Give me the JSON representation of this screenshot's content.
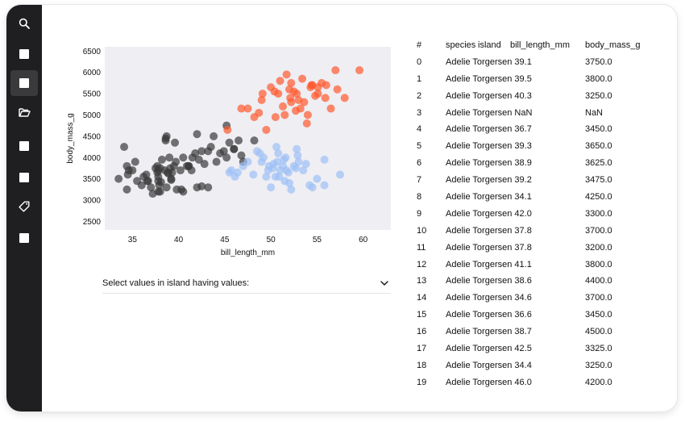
{
  "sidebar": {
    "items": [
      {
        "icon": "search-icon"
      },
      {
        "icon": "square-icon"
      },
      {
        "icon": "square-icon",
        "active": true
      },
      {
        "icon": "folder-open-icon"
      },
      {
        "icon": "square-icon"
      },
      {
        "icon": "square-icon"
      },
      {
        "icon": "tag-icon"
      },
      {
        "icon": "square-icon"
      }
    ]
  },
  "colors": {
    "Torgersen": "#3a3a3a",
    "Biscoe": "#ff5a2e",
    "Dream": "#9ec0f5",
    "plot_bg": "#eeeef3",
    "sidebar_bg": "#1f1f21"
  },
  "chart_data": {
    "type": "scatter",
    "xlabel": "bill_length_mm",
    "ylabel": "body_mass_g",
    "xlim": [
      32,
      63
    ],
    "ylim": [
      2300,
      6600
    ],
    "xticks": [
      35,
      40,
      45,
      50,
      55,
      60
    ],
    "yticks": [
      2500,
      3000,
      3500,
      4000,
      4500,
      5000,
      5500,
      6000,
      6500
    ],
    "grid": false,
    "legend": "none",
    "series": [
      {
        "color_key": "Torgersen",
        "points": [
          [
            33.5,
            3500
          ],
          [
            34.4,
            3800
          ],
          [
            34.5,
            3600
          ],
          [
            35.0,
            3700
          ],
          [
            35.3,
            3900
          ],
          [
            35.5,
            3450
          ],
          [
            36.0,
            3350
          ],
          [
            36.5,
            3600
          ],
          [
            37.0,
            3300
          ],
          [
            37.2,
            3150
          ],
          [
            37.5,
            3750
          ],
          [
            37.7,
            3800
          ],
          [
            37.7,
            3650
          ],
          [
            37.8,
            3550
          ],
          [
            37.8,
            3450
          ],
          [
            37.9,
            3350
          ],
          [
            38.0,
            3200
          ],
          [
            38.0,
            3750
          ],
          [
            38.2,
            3950
          ],
          [
            38.5,
            3700
          ],
          [
            38.6,
            4450
          ],
          [
            38.7,
            3300
          ],
          [
            38.8,
            3650
          ],
          [
            39.0,
            4000
          ],
          [
            39.2,
            3500
          ],
          [
            39.5,
            3800
          ],
          [
            39.6,
            4350
          ],
          [
            39.8,
            3250
          ],
          [
            40.2,
            3700
          ],
          [
            40.3,
            3250
          ],
          [
            40.5,
            4000
          ],
          [
            40.9,
            3800
          ],
          [
            41.1,
            3800
          ],
          [
            41.5,
            4000
          ],
          [
            41.8,
            4100
          ],
          [
            42.0,
            4550
          ],
          [
            42.2,
            3950
          ],
          [
            42.5,
            4150
          ],
          [
            42.8,
            3850
          ],
          [
            43.2,
            3300
          ],
          [
            43.5,
            4250
          ],
          [
            43.8,
            4500
          ],
          [
            44.1,
            3900
          ],
          [
            44.5,
            4100
          ],
          [
            44.9,
            4150
          ],
          [
            45.2,
            4000
          ],
          [
            45.5,
            4350
          ],
          [
            46.0,
            4200
          ],
          [
            46.5,
            4400
          ],
          [
            46.8,
            4050
          ],
          [
            47.0,
            3900
          ],
          [
            48.2,
            4400
          ],
          [
            39.1,
            3750
          ],
          [
            39.3,
            3650
          ],
          [
            38.9,
            3625
          ],
          [
            39.2,
            3475
          ],
          [
            34.1,
            4250
          ],
          [
            42.0,
            3300
          ],
          [
            37.8,
            3700
          ],
          [
            37.8,
            3200
          ],
          [
            41.1,
            3800
          ],
          [
            38.6,
            4400
          ],
          [
            34.6,
            3700
          ],
          [
            36.6,
            3450
          ],
          [
            38.7,
            4500
          ],
          [
            42.5,
            3325
          ],
          [
            34.4,
            3250
          ],
          [
            46.0,
            4200
          ],
          [
            36.7,
            3450
          ],
          [
            40.5,
            3200
          ],
          [
            43.2,
            4150
          ],
          [
            41.4,
            3700
          ],
          [
            39.7,
            3900
          ],
          [
            38.1,
            3425
          ],
          [
            36.2,
            3550
          ],
          [
            45.2,
            4750
          ]
        ]
      },
      {
        "color_key": "Dream",
        "points": [
          [
            46.1,
            3550
          ],
          [
            47.5,
            3900
          ],
          [
            48.5,
            4150
          ],
          [
            49.0,
            3900
          ],
          [
            49.5,
            3550
          ],
          [
            49.8,
            3800
          ],
          [
            50.0,
            3300
          ],
          [
            50.2,
            3750
          ],
          [
            50.3,
            3850
          ],
          [
            50.5,
            3550
          ],
          [
            50.7,
            3900
          ],
          [
            50.8,
            4100
          ],
          [
            51.0,
            3700
          ],
          [
            51.3,
            3800
          ],
          [
            51.4,
            3950
          ],
          [
            51.5,
            3450
          ],
          [
            51.7,
            3700
          ],
          [
            51.9,
            3650
          ],
          [
            52.0,
            3400
          ],
          [
            52.2,
            3250
          ],
          [
            52.5,
            3800
          ],
          [
            52.7,
            3750
          ],
          [
            52.8,
            4200
          ],
          [
            53.0,
            3900
          ],
          [
            53.5,
            3700
          ],
          [
            54.2,
            3350
          ],
          [
            55.0,
            3500
          ],
          [
            55.8,
            3950
          ],
          [
            45.5,
            3650
          ],
          [
            47.0,
            3800
          ],
          [
            48.1,
            3600
          ],
          [
            49.2,
            4000
          ],
          [
            50.9,
            3550
          ],
          [
            46.4,
            3650
          ],
          [
            45.7,
            3700
          ],
          [
            50.6,
            4250
          ],
          [
            52.9,
            4050
          ],
          [
            49.7,
            3700
          ],
          [
            51.6,
            4000
          ],
          [
            55.8,
            3350
          ],
          [
            57.5,
            3600
          ],
          [
            54.5,
            3300
          ],
          [
            53.8,
            3850
          ],
          [
            48.8,
            4100
          ]
        ]
      },
      {
        "color_key": "Biscoe",
        "points": [
          [
            45.3,
            4650
          ],
          [
            47.5,
            5150
          ],
          [
            48.2,
            4950
          ],
          [
            48.7,
            5050
          ],
          [
            49.0,
            5350
          ],
          [
            49.5,
            4650
          ],
          [
            50.0,
            5650
          ],
          [
            50.5,
            4950
          ],
          [
            50.8,
            5500
          ],
          [
            51.0,
            5800
          ],
          [
            51.3,
            5200
          ],
          [
            51.5,
            5000
          ],
          [
            51.7,
            5950
          ],
          [
            52.0,
            5600
          ],
          [
            52.2,
            5300
          ],
          [
            52.5,
            5550
          ],
          [
            52.8,
            5500
          ],
          [
            53.0,
            5350
          ],
          [
            53.2,
            5150
          ],
          [
            53.4,
            5850
          ],
          [
            53.6,
            5300
          ],
          [
            54.0,
            5000
          ],
          [
            54.3,
            5650
          ],
          [
            54.5,
            5700
          ],
          [
            54.8,
            5450
          ],
          [
            55.1,
            5650
          ],
          [
            55.5,
            5750
          ],
          [
            55.9,
            5400
          ],
          [
            56.0,
            5700
          ],
          [
            56.5,
            5150
          ],
          [
            57.0,
            6050
          ],
          [
            57.2,
            5600
          ],
          [
            58.0,
            5400
          ],
          [
            59.6,
            6050
          ],
          [
            52.1,
            5400
          ],
          [
            53.9,
            4800
          ],
          [
            55.1,
            5500
          ],
          [
            52.2,
            5750
          ],
          [
            50.4,
            5550
          ],
          [
            54.4,
            5700
          ],
          [
            52.7,
            5100
          ],
          [
            49.1,
            5500
          ],
          [
            46.8,
            5150
          ]
        ]
      }
    ]
  },
  "select": {
    "label": "Select values in island having values:"
  },
  "table": {
    "headers": {
      "idx": "#",
      "species": "species",
      "island": "island",
      "bill": "bill_length_mm",
      "mass": "body_mass_g"
    },
    "rows": [
      {
        "idx": "0",
        "text": "Adelie Torgersen 39.1",
        "mass": "3750.0"
      },
      {
        "idx": "1",
        "text": "Adelie Torgersen 39.5",
        "mass": "3800.0"
      },
      {
        "idx": "2",
        "text": "Adelie Torgersen 40.3",
        "mass": "3250.0"
      },
      {
        "idx": "3",
        "text": "Adelie Torgersen NaN",
        "mass": "NaN"
      },
      {
        "idx": "4",
        "text": "Adelie Torgersen 36.7",
        "mass": "3450.0"
      },
      {
        "idx": "5",
        "text": "Adelie Torgersen 39.3",
        "mass": "3650.0"
      },
      {
        "idx": "6",
        "text": "Adelie Torgersen 38.9",
        "mass": "3625.0"
      },
      {
        "idx": "7",
        "text": "Adelie Torgersen 39.2",
        "mass": "3475.0"
      },
      {
        "idx": "8",
        "text": "Adelie Torgersen 34.1",
        "mass": "4250.0"
      },
      {
        "idx": "9",
        "text": "Adelie Torgersen 42.0",
        "mass": "3300.0"
      },
      {
        "idx": "10",
        "text": "Adelie Torgersen 37.8",
        "mass": "3700.0"
      },
      {
        "idx": "11",
        "text": "Adelie Torgersen 37.8",
        "mass": "3200.0"
      },
      {
        "idx": "12",
        "text": "Adelie Torgersen 41.1",
        "mass": "3800.0"
      },
      {
        "idx": "13",
        "text": "Adelie Torgersen 38.6",
        "mass": "4400.0"
      },
      {
        "idx": "14",
        "text": "Adelie Torgersen 34.6",
        "mass": "3700.0"
      },
      {
        "idx": "15",
        "text": "Adelie Torgersen 36.6",
        "mass": "3450.0"
      },
      {
        "idx": "16",
        "text": "Adelie Torgersen 38.7",
        "mass": "4500.0"
      },
      {
        "idx": "17",
        "text": "Adelie Torgersen 42.5",
        "mass": "3325.0"
      },
      {
        "idx": "18",
        "text": "Adelie Torgersen 34.4",
        "mass": "3250.0"
      },
      {
        "idx": "19",
        "text": "Adelie Torgersen 46.0",
        "mass": "4200.0"
      }
    ]
  }
}
